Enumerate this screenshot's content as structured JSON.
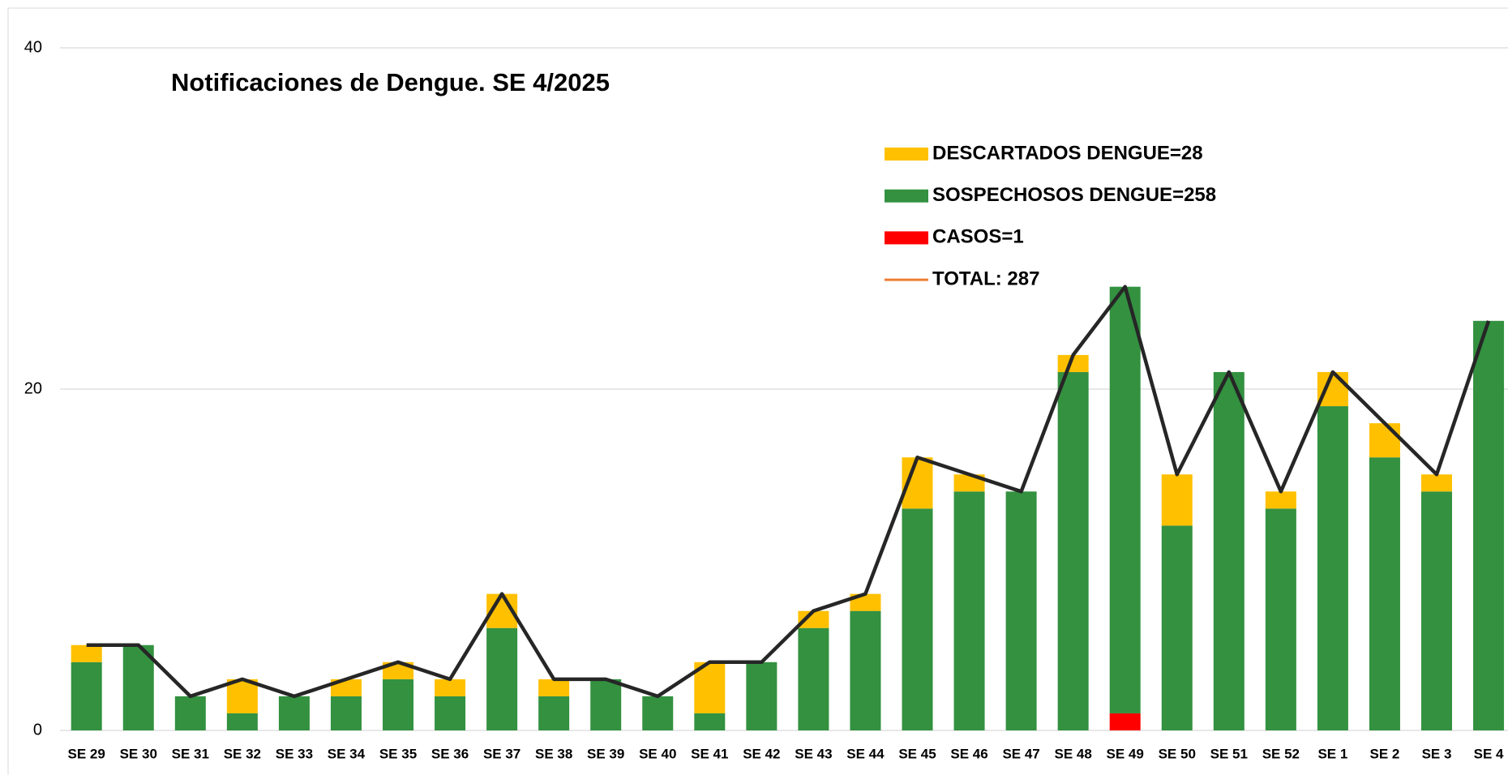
{
  "chart_data": {
    "type": "stacked_bar_line",
    "title": "Notificaciones de Dengue. SE 4/2025",
    "categories": [
      "SE 29",
      "SE 30",
      "SE 31",
      "SE 32",
      "SE 33",
      "SE 34",
      "SE 35",
      "SE 36",
      "SE 37",
      "SE 38",
      "SE 39",
      "SE 40",
      "SE 41",
      "SE 42",
      "SE 43",
      "SE 44",
      "SE 45",
      "SE 46",
      "SE 47",
      "SE 48",
      "SE 49",
      "SE 50",
      "SE 51",
      "SE 52",
      "SE 1",
      "SE 2",
      "SE 3",
      "SE 4"
    ],
    "series": [
      {
        "name": "DESCARTADOS DENGUE=28",
        "type": "bar",
        "color": "#ffc000",
        "values": [
          1,
          0,
          0,
          2,
          0,
          1,
          1,
          1,
          2,
          1,
          0,
          0,
          3,
          0,
          1,
          1,
          3,
          1,
          0,
          1,
          0,
          3,
          0,
          1,
          2,
          2,
          1,
          0
        ]
      },
      {
        "name": "SOSPECHOSOS DENGUE=258",
        "type": "bar",
        "color": "#339140",
        "values": [
          4,
          5,
          2,
          1,
          2,
          2,
          3,
          2,
          6,
          2,
          3,
          2,
          1,
          4,
          6,
          7,
          13,
          14,
          14,
          21,
          25,
          12,
          21,
          13,
          19,
          16,
          14,
          24
        ]
      },
      {
        "name": "CASOS=1",
        "type": "bar",
        "color": "#ff0000",
        "values": [
          0,
          0,
          0,
          0,
          0,
          0,
          0,
          0,
          0,
          0,
          0,
          0,
          0,
          0,
          0,
          0,
          0,
          0,
          0,
          0,
          1,
          0,
          0,
          0,
          0,
          0,
          0,
          0
        ]
      },
      {
        "name": "TOTAL: 287",
        "type": "line",
        "color": "#262626",
        "legend_color": "#ed7d31",
        "values": [
          5,
          5,
          2,
          3,
          2,
          3,
          4,
          3,
          8,
          3,
          3,
          2,
          4,
          4,
          7,
          8,
          16,
          15,
          14,
          22,
          26,
          15,
          21,
          14,
          21,
          18,
          15,
          24
        ]
      }
    ],
    "stack_order": [
      2,
      1,
      0
    ],
    "ylim": [
      0,
      40
    ],
    "yticks": [
      0,
      20,
      40
    ],
    "grid": true
  }
}
